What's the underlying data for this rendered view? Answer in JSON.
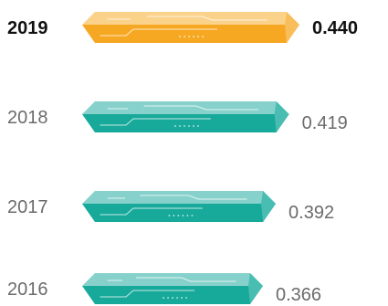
{
  "chart_data": {
    "type": "bar",
    "orientation": "horizontal",
    "categories": [
      "2019",
      "2018",
      "2017",
      "2016"
    ],
    "values": [
      0.44,
      0.419,
      0.392,
      0.366
    ],
    "value_labels": [
      "0.440",
      "0.419",
      "0.392",
      "0.366"
    ],
    "highlight": "2019",
    "title": "",
    "xlabel": "",
    "ylabel": "",
    "grid": false,
    "colors": {
      "highlight_front": "#F7A823",
      "highlight_top": "#FBD28A",
      "highlight_side": "#F9BE5C",
      "normal_front": "#17A99A",
      "normal_top": "#86D1CB",
      "normal_side": "#49BDB1",
      "circuit_light": "#FFFFFF",
      "label_normal": "#6B6B6B",
      "label_highlight": "#111111"
    }
  }
}
